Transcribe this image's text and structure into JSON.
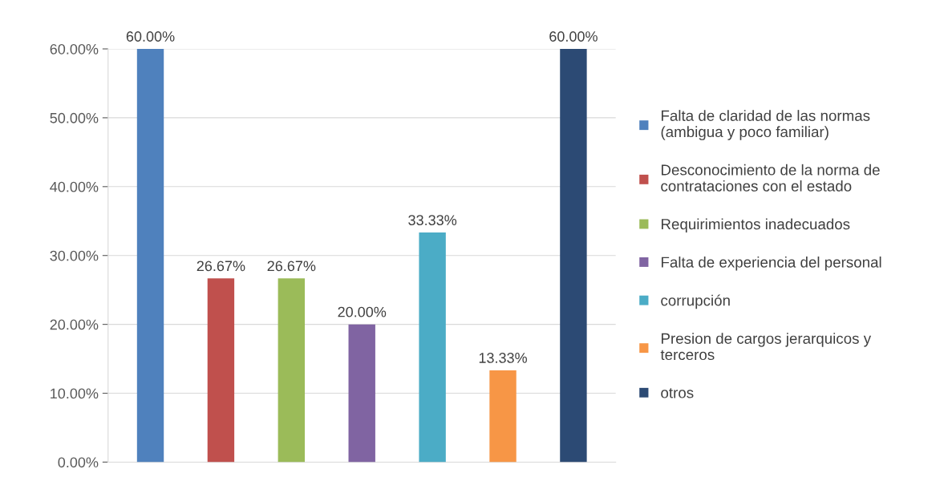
{
  "chart_data": {
    "type": "bar",
    "categories": [
      null,
      null,
      null,
      null,
      null,
      null,
      null
    ],
    "series": [
      {
        "name": "Falta de claridad de las normas (ambigua y poco familiar)",
        "color": "#4f81bd",
        "values": [
          60,
          null,
          null,
          null,
          null,
          null,
          null
        ],
        "value_labels": [
          "60.00%",
          null,
          null,
          null,
          null,
          null,
          null
        ]
      },
      {
        "name": "Desconocimiento de la norma de contrataciones con el estado",
        "color": "#c0504d",
        "values": [
          null,
          26.67,
          null,
          null,
          null,
          null,
          null
        ],
        "value_labels": [
          null,
          "26.67%",
          null,
          null,
          null,
          null,
          null
        ]
      },
      {
        "name": "Requirimientos inadecuados",
        "color": "#9bbb59",
        "values": [
          null,
          null,
          26.67,
          null,
          null,
          null,
          null
        ],
        "value_labels": [
          null,
          null,
          "26.67%",
          null,
          null,
          null,
          null
        ]
      },
      {
        "name": "Falta de experiencia del personal",
        "color": "#8064a2",
        "values": [
          null,
          null,
          null,
          20,
          null,
          null,
          null
        ],
        "value_labels": [
          null,
          null,
          null,
          "20.00%",
          null,
          null,
          null
        ]
      },
      {
        "name": "corrupción",
        "color": "#4bacc6",
        "values": [
          null,
          null,
          null,
          null,
          33.33,
          null,
          null
        ],
        "value_labels": [
          null,
          null,
          null,
          null,
          "33.33%",
          null,
          null
        ]
      },
      {
        "name": "Presion de cargos jerarquicos y terceros",
        "color": "#f79646",
        "values": [
          null,
          null,
          null,
          null,
          null,
          13.33,
          null
        ],
        "value_labels": [
          null,
          null,
          null,
          null,
          null,
          "13.33%",
          null
        ]
      },
      {
        "name": "otros",
        "color": "#2c4a74",
        "values": [
          null,
          null,
          null,
          null,
          null,
          null,
          60
        ],
        "value_labels": [
          null,
          null,
          null,
          null,
          null,
          null,
          "60.00%"
        ]
      }
    ],
    "ylim": [
      0,
      60
    ],
    "yticks": [
      {
        "value": 0,
        "label": "0.00%"
      },
      {
        "value": 10,
        "label": "10.00%"
      },
      {
        "value": 20,
        "label": "20.00%"
      },
      {
        "value": 30,
        "label": "30.00%"
      },
      {
        "value": 40,
        "label": "40.00%"
      },
      {
        "value": 50,
        "label": "50.00%"
      },
      {
        "value": 60,
        "label": "60.00%"
      }
    ],
    "grid": "y",
    "legend": "right"
  }
}
